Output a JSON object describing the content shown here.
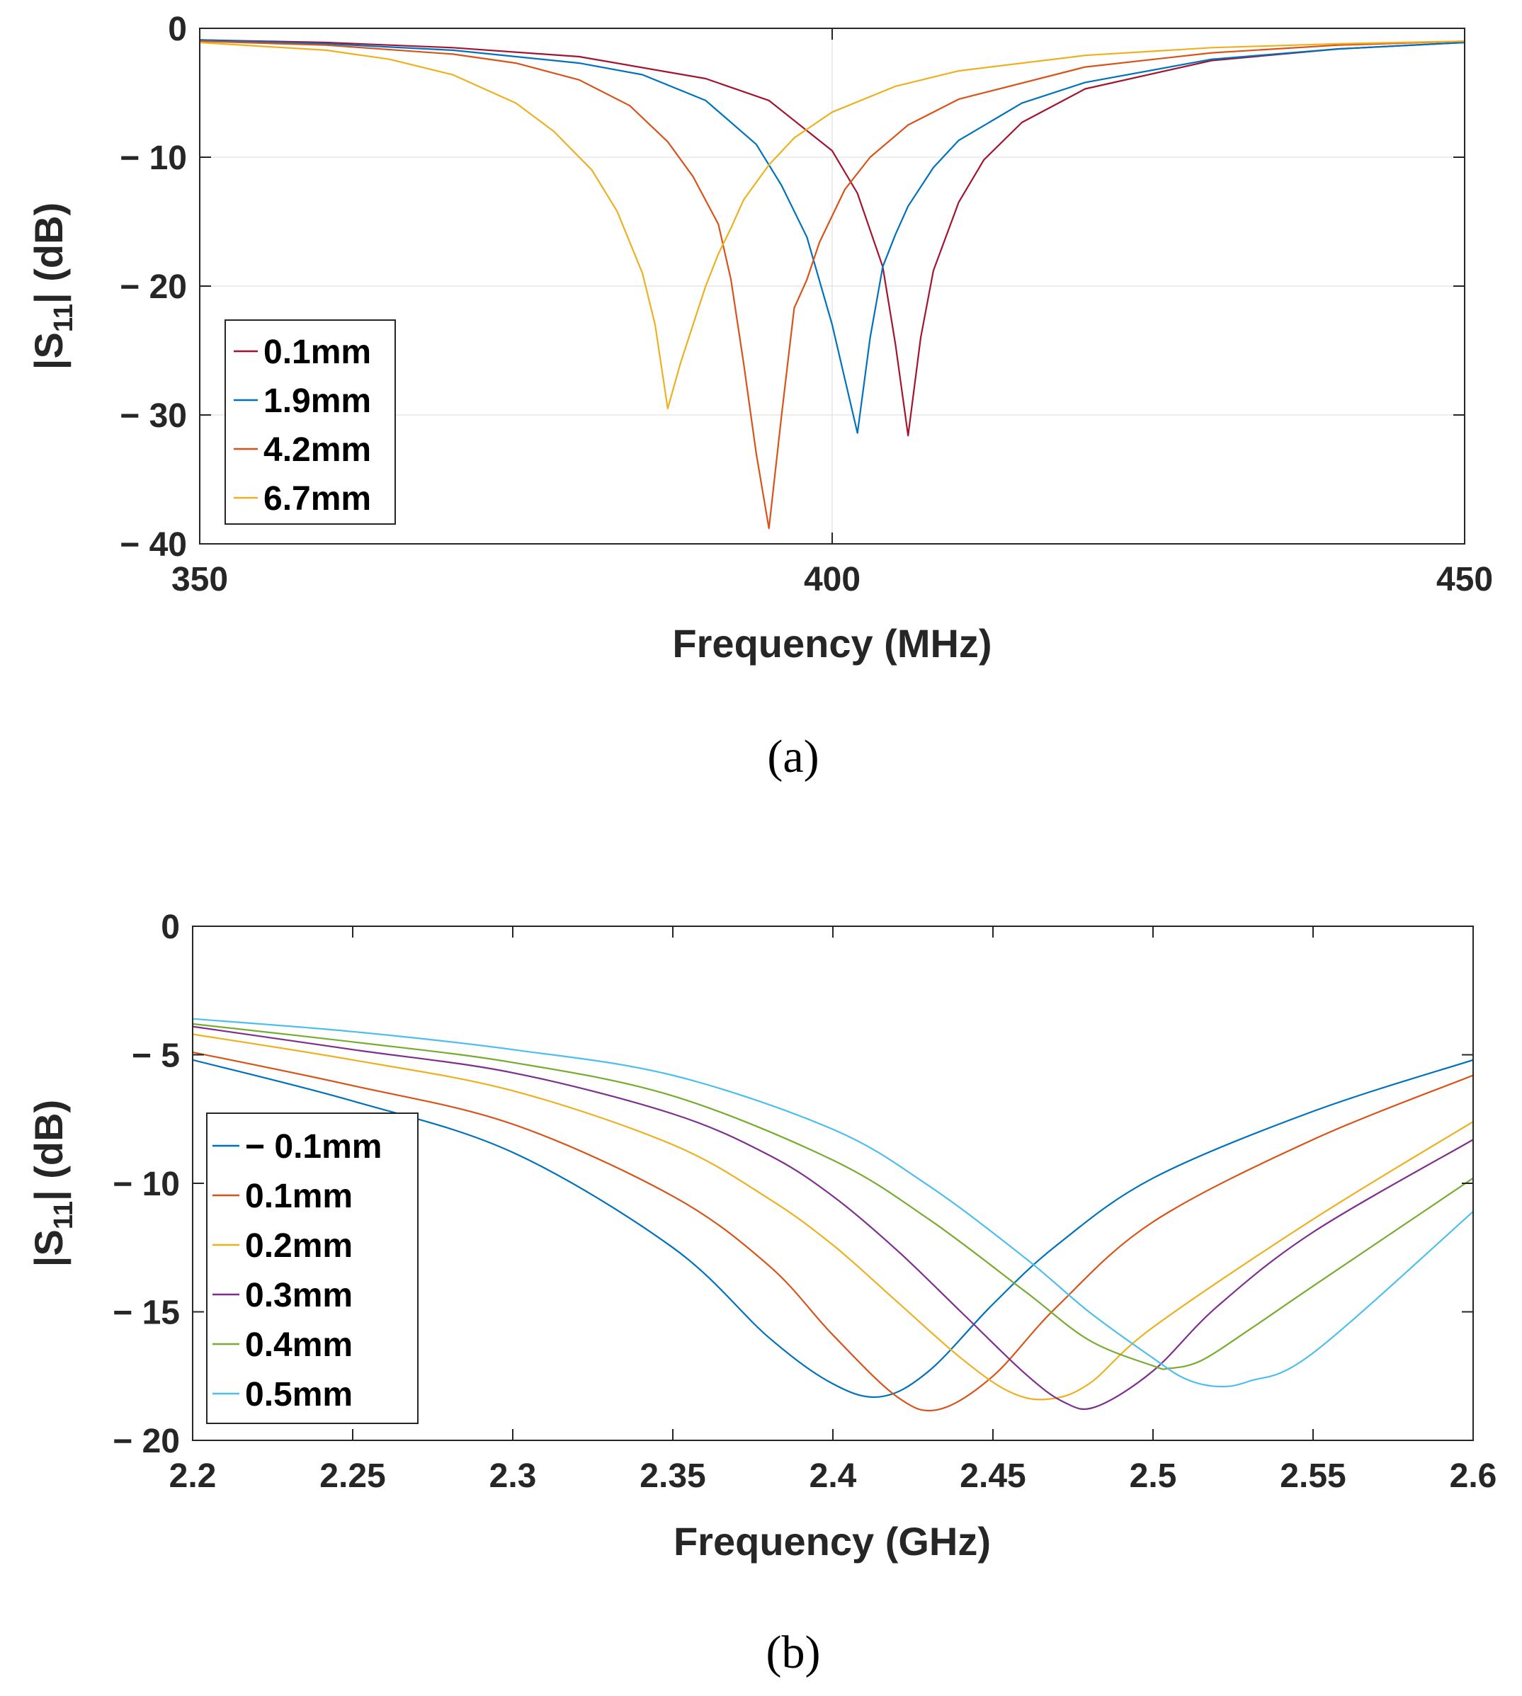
{
  "figure": {
    "captions": [
      "(a)",
      "(b)"
    ]
  },
  "chart_data": [
    {
      "id": "a",
      "type": "line",
      "title": "",
      "xlabel": "Frequency (MHz)",
      "ylabel_main": "|S",
      "ylabel_sub": "11",
      "ylabel_tail": "| (dB)",
      "xlim": [
        350,
        450
      ],
      "ylim": [
        -40,
        0
      ],
      "xticks": [
        350,
        400,
        450
      ],
      "xtick_labels": [
        "350",
        "400",
        "450"
      ],
      "yticks": [
        0,
        -10,
        -20,
        -30,
        -40
      ],
      "ytick_labels": [
        "0",
        "− 10",
        "− 20",
        "− 30",
        "− 40"
      ],
      "grid": true,
      "legend_position": "lower-left",
      "series": [
        {
          "name": "0.1mm",
          "color": "#a2142f",
          "x": [
            350,
            360,
            370,
            380,
            390,
            395,
            400,
            402,
            404,
            405,
            406,
            407,
            408,
            410,
            412,
            415,
            420,
            430,
            440,
            450
          ],
          "y": [
            -0.9,
            -1.1,
            -1.5,
            -2.2,
            -3.9,
            -5.6,
            -9.5,
            -12.8,
            -18.5,
            -24.5,
            -31.6,
            -24.0,
            -18.8,
            -13.5,
            -10.2,
            -7.3,
            -4.7,
            -2.5,
            -1.6,
            -1.1
          ]
        },
        {
          "name": "1.9mm",
          "color": "#0072bd",
          "x": [
            350,
            360,
            370,
            380,
            385,
            390,
            394,
            396,
            398,
            400,
            402,
            403,
            404,
            405,
            406,
            408,
            410,
            415,
            420,
            430,
            440,
            450
          ],
          "y": [
            -0.9,
            -1.2,
            -1.7,
            -2.7,
            -3.6,
            -5.6,
            -9.0,
            -12.2,
            -16.2,
            -23.0,
            -31.4,
            -24.0,
            -18.5,
            -16.0,
            -13.8,
            -10.8,
            -8.7,
            -5.8,
            -4.2,
            -2.4,
            -1.6,
            -1.1
          ]
        },
        {
          "name": "4.2mm",
          "color": "#d95319",
          "x": [
            350,
            360,
            370,
            375,
            380,
            384,
            387,
            389,
            391,
            392,
            393,
            394,
            395,
            396,
            397,
            398,
            399,
            401,
            403,
            406,
            410,
            420,
            430,
            440,
            450
          ],
          "y": [
            -1.0,
            -1.3,
            -2.0,
            -2.7,
            -4.0,
            -6.0,
            -8.8,
            -11.5,
            -15.2,
            -19.5,
            -26.0,
            -33.0,
            -38.8,
            -30.0,
            -21.7,
            -19.5,
            -16.6,
            -12.5,
            -10.0,
            -7.5,
            -5.5,
            -3.0,
            -1.9,
            -1.3,
            -1.0
          ]
        },
        {
          "name": "6.7mm",
          "color": "#edb120",
          "x": [
            350,
            360,
            365,
            370,
            375,
            378,
            381,
            383,
            385,
            386,
            387,
            388,
            389,
            390,
            391,
            392,
            393,
            395,
            397,
            400,
            405,
            410,
            420,
            430,
            440,
            450
          ],
          "y": [
            -1.1,
            -1.7,
            -2.4,
            -3.6,
            -5.8,
            -8.0,
            -11.0,
            -14.2,
            -19.0,
            -23.0,
            -29.5,
            -26.0,
            -23.0,
            -20.0,
            -17.5,
            -15.5,
            -13.3,
            -10.6,
            -8.5,
            -6.5,
            -4.5,
            -3.3,
            -2.1,
            -1.5,
            -1.2,
            -1.0
          ]
        }
      ]
    },
    {
      "id": "b",
      "type": "line",
      "title": "",
      "xlabel": "Frequency (GHz)",
      "ylabel_main": "|S",
      "ylabel_sub": "11",
      "ylabel_tail": "| (dB)",
      "xlim": [
        2.2,
        2.6
      ],
      "ylim": [
        -20,
        0
      ],
      "xticks": [
        2.2,
        2.25,
        2.3,
        2.35,
        2.4,
        2.45,
        2.5,
        2.55,
        2.6
      ],
      "xtick_labels": [
        "2.2",
        "2.25",
        "2.3",
        "2.35",
        "2.4",
        "2.45",
        "2.5",
        "2.55",
        "2.6"
      ],
      "yticks": [
        0,
        -5,
        -10,
        -15,
        -20
      ],
      "ytick_labels": [
        "0",
        "− 5",
        "− 10",
        "− 15",
        "− 20"
      ],
      "grid": false,
      "legend_position": "lower-left",
      "series": [
        {
          "name": "− 0.1mm",
          "color": "#0072bd",
          "x": [
            2.2,
            2.25,
            2.3,
            2.35,
            2.38,
            2.4,
            2.415,
            2.43,
            2.45,
            2.47,
            2.5,
            2.55,
            2.6
          ],
          "y": [
            -5.2,
            -6.8,
            -8.8,
            -12.5,
            -16.0,
            -17.8,
            -18.3,
            -17.3,
            -14.7,
            -12.4,
            -9.8,
            -7.2,
            -5.2
          ]
        },
        {
          "name": "0.1mm",
          "color": "#d95319",
          "x": [
            2.2,
            2.25,
            2.3,
            2.35,
            2.38,
            2.4,
            2.42,
            2.433,
            2.45,
            2.47,
            2.5,
            2.55,
            2.6
          ],
          "y": [
            -4.9,
            -6.2,
            -7.7,
            -10.5,
            -13.2,
            -15.9,
            -18.3,
            -18.8,
            -17.5,
            -14.8,
            -11.5,
            -8.3,
            -5.8
          ]
        },
        {
          "name": "0.2mm",
          "color": "#edb120",
          "x": [
            2.2,
            2.25,
            2.3,
            2.35,
            2.38,
            2.4,
            2.42,
            2.44,
            2.455,
            2.467,
            2.48,
            2.5,
            2.55,
            2.6
          ],
          "y": [
            -4.2,
            -5.2,
            -6.4,
            -8.5,
            -10.6,
            -12.4,
            -14.6,
            -16.8,
            -18.1,
            -18.4,
            -17.8,
            -15.6,
            -11.4,
            -7.6
          ]
        },
        {
          "name": "0.3mm",
          "color": "#7e2f8e",
          "x": [
            2.2,
            2.25,
            2.3,
            2.35,
            2.38,
            2.4,
            2.42,
            2.44,
            2.46,
            2.472,
            2.482,
            2.5,
            2.52,
            2.55,
            2.6
          ],
          "y": [
            -3.9,
            -4.8,
            -5.7,
            -7.3,
            -8.9,
            -10.5,
            -12.6,
            -15.0,
            -17.4,
            -18.5,
            -18.7,
            -17.3,
            -14.8,
            -11.9,
            -8.3
          ]
        },
        {
          "name": "0.4mm",
          "color": "#77ac30",
          "x": [
            2.2,
            2.25,
            2.3,
            2.35,
            2.4,
            2.43,
            2.46,
            2.48,
            2.5,
            2.505,
            2.515,
            2.53,
            2.55,
            2.6
          ],
          "y": [
            -3.8,
            -4.5,
            -5.3,
            -6.6,
            -9.1,
            -11.4,
            -14.2,
            -16.1,
            -17.1,
            -17.2,
            -16.9,
            -15.7,
            -14.0,
            -9.8
          ]
        },
        {
          "name": "0.5mm",
          "color": "#4dbeee",
          "x": [
            2.2,
            2.25,
            2.3,
            2.35,
            2.4,
            2.43,
            2.46,
            2.48,
            2.5,
            2.51,
            2.52,
            2.53,
            2.55,
            2.6
          ],
          "y": [
            -3.6,
            -4.1,
            -4.8,
            -5.8,
            -7.9,
            -10.1,
            -12.9,
            -15.0,
            -16.8,
            -17.6,
            -17.9,
            -17.7,
            -16.6,
            -11.1
          ]
        }
      ]
    }
  ]
}
